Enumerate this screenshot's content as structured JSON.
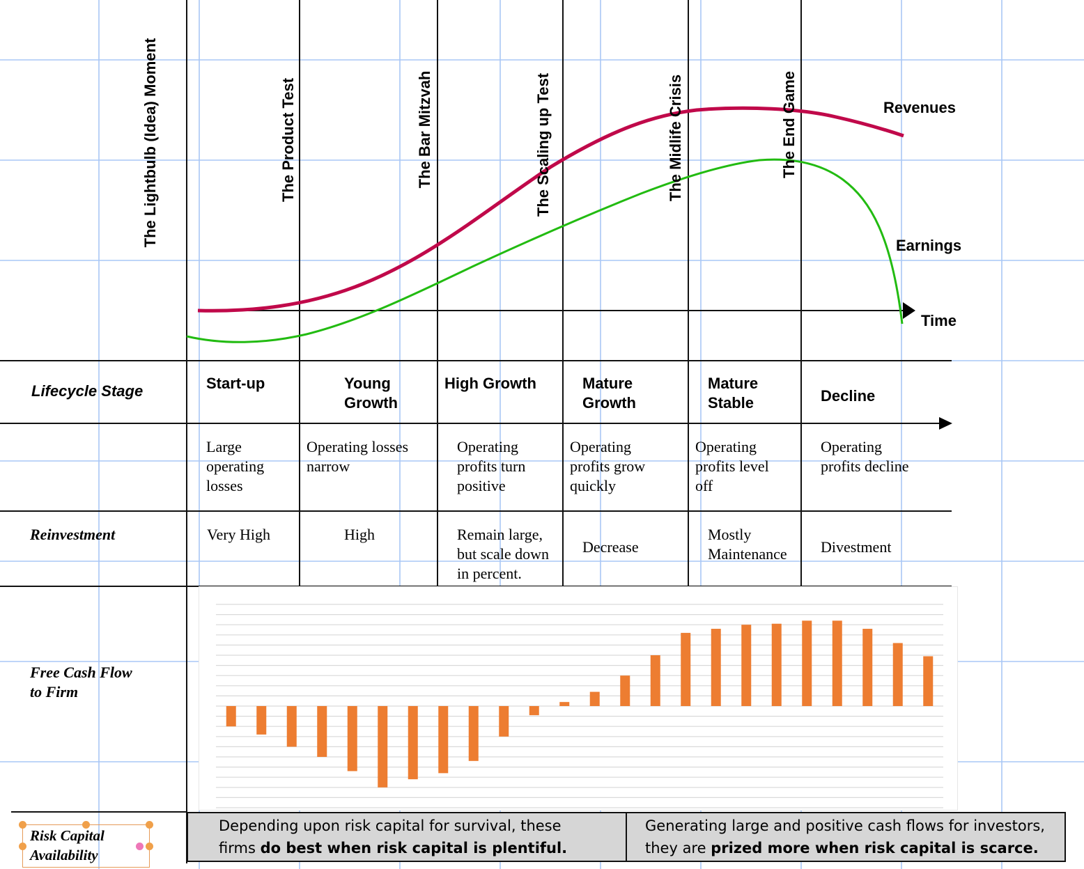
{
  "milestones": [
    "The Lightbulb (Idea) Moment",
    "The Product Test",
    "The Bar Mitzvah",
    "The Scaling up Test",
    "The Midlife Crisis",
    "The End Game"
  ],
  "curves": {
    "revenues_label": "Revenues",
    "earnings_label": "Earnings",
    "time_label": "Time",
    "revenue_color": "#c0094a",
    "earnings_color": "#22bb11"
  },
  "rows": {
    "lifecycle_label": "Lifecycle Stage",
    "reinvestment_label": "Reinvestment",
    "fcf_label_line1": "Free Cash Flow",
    "fcf_label_line2": "to Firm",
    "risk_label_line1": "Risk Capital",
    "risk_label_line2": "Availability"
  },
  "stages": [
    {
      "name_1": "Start-up",
      "name_2": "",
      "desc": [
        "Large",
        "operating",
        "losses"
      ],
      "reinvest": [
        "Very High"
      ]
    },
    {
      "name_1": "Young",
      "name_2": "Growth",
      "desc": [
        "Operating losses",
        "narrow"
      ],
      "reinvest": [
        "High"
      ]
    },
    {
      "name_1": "High Growth",
      "name_2": "",
      "desc": [
        "Operating",
        "profits turn",
        "positive"
      ],
      "reinvest": [
        "Remain large,",
        "but scale down",
        "in percent."
      ]
    },
    {
      "name_1": "Mature",
      "name_2": "Growth",
      "desc": [
        "Operating",
        "profits grow",
        "quickly"
      ],
      "reinvest": [
        "Decrease"
      ]
    },
    {
      "name_1": "Mature",
      "name_2": "Stable",
      "desc": [
        "Operating",
        "profits level",
        "off"
      ],
      "reinvest": [
        "Mostly",
        "Maintenance"
      ]
    },
    {
      "name_1": "Decline",
      "name_2": "",
      "desc": [
        "Operating",
        "profits decline"
      ],
      "reinvest": [
        "Divestment"
      ]
    }
  ],
  "risk_capital": {
    "left_line1": "Depending upon risk capital for survival, these",
    "left_line2_plain": "firms ",
    "left_line2_bold": "do best when risk capital is plentiful.",
    "right_line1": "Generating large and positive cash flows for investors,",
    "right_line2_plain": "they are ",
    "right_line2_bold": "prized more when risk capital is scarce."
  },
  "colors": {
    "bar": "#ed7d31",
    "grid": "#a9c7f5",
    "risk_box_bg": "#d6d6d6"
  },
  "chart_data": {
    "type": "bar",
    "title": "",
    "xlabel": "",
    "ylabel": "",
    "series": [
      {
        "values": [
          -1.0,
          -1.4,
          -2.0,
          -2.5,
          -3.2,
          -4.0,
          -3.6,
          -3.3,
          -2.7,
          -1.5,
          -0.45,
          0.2,
          0.7,
          1.5,
          2.5,
          3.6,
          3.8,
          4.0,
          4.05,
          4.2,
          4.2,
          3.8,
          3.1,
          2.45
        ]
      }
    ],
    "ylim": [
      -5,
      5
    ],
    "grid": true,
    "legend": "none"
  }
}
